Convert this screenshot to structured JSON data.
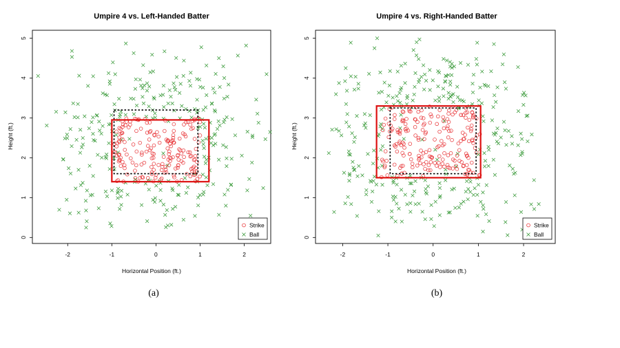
{
  "chart_data": [
    {
      "type": "scatter",
      "panel_label": "(a)",
      "title": "Umpire 4 vs. Left-Handed Batter",
      "xlabel": "Horizontal Position (ft.)",
      "ylabel": "Height (ft.)",
      "xlim": [
        -2.8,
        2.6
      ],
      "ylim": [
        -0.15,
        5.2
      ],
      "xticks": [
        -2,
        -1,
        0,
        1,
        2
      ],
      "yticks": [
        0,
        1,
        2,
        3,
        4,
        5
      ],
      "legend": {
        "position": "bottom-right",
        "entries": [
          {
            "label": "Strike",
            "marker": "o",
            "color": "#e8383b"
          },
          {
            "label": "Ball",
            "marker": "x",
            "color": "#3a9a3a"
          }
        ]
      },
      "zones": [
        {
          "name": "rulebook-zone",
          "style": "dotted",
          "color": "#000000",
          "x": [
            -0.95,
            0.95
          ],
          "y": [
            1.6,
            3.2
          ]
        },
        {
          "name": "empirical-zone",
          "style": "solid",
          "color": "#dd1111",
          "x": [
            -1.0,
            1.2
          ],
          "y": [
            1.4,
            2.95
          ]
        }
      ],
      "series": [
        {
          "name": "Strike",
          "n": 190,
          "x_range": [
            -0.95,
            1.0
          ],
          "y_range": [
            1.4,
            3.0
          ],
          "seed": 1234
        },
        {
          "name": "Ball",
          "n": 300,
          "x_range": [
            -2.7,
            2.6
          ],
          "y_range": [
            -0.1,
            4.9
          ],
          "seed": 5678,
          "exclude_zone": [
            -0.9,
            0.95,
            1.55,
            2.95
          ]
        }
      ]
    },
    {
      "type": "scatter",
      "panel_label": "(b)",
      "title": "Umpire 4 vs. Right-Handed Batter",
      "xlabel": "Horizontal Position (ft.)",
      "ylabel": "Height (ft.)",
      "xlim": [
        -2.6,
        2.7
      ],
      "ylim": [
        -0.15,
        5.2
      ],
      "xticks": [
        -2,
        -1,
        0,
        1,
        2
      ],
      "yticks": [
        0,
        1,
        2,
        3,
        4,
        5
      ],
      "legend": {
        "position": "bottom-right",
        "entries": [
          {
            "label": "Strike",
            "marker": "o",
            "color": "#e8383b"
          },
          {
            "label": "Ball",
            "marker": "x",
            "color": "#3a9a3a"
          }
        ]
      },
      "zones": [
        {
          "name": "rulebook-zone",
          "style": "dotted",
          "color": "#000000",
          "x": [
            -0.95,
            0.95
          ],
          "y": [
            1.6,
            3.25
          ]
        },
        {
          "name": "empirical-zone",
          "style": "solid",
          "color": "#dd1111",
          "x": [
            -1.25,
            1.05
          ],
          "y": [
            1.5,
            3.3
          ]
        }
      ],
      "series": [
        {
          "name": "Strike",
          "n": 210,
          "x_range": [
            -1.15,
            1.05
          ],
          "y_range": [
            1.5,
            3.3
          ],
          "seed": 4321
        },
        {
          "name": "Ball",
          "n": 330,
          "x_range": [
            -2.4,
            2.4
          ],
          "y_range": [
            0,
            5
          ],
          "seed": 8765,
          "exclude_zone": [
            -1.1,
            1.0,
            1.55,
            3.25
          ]
        }
      ]
    }
  ]
}
